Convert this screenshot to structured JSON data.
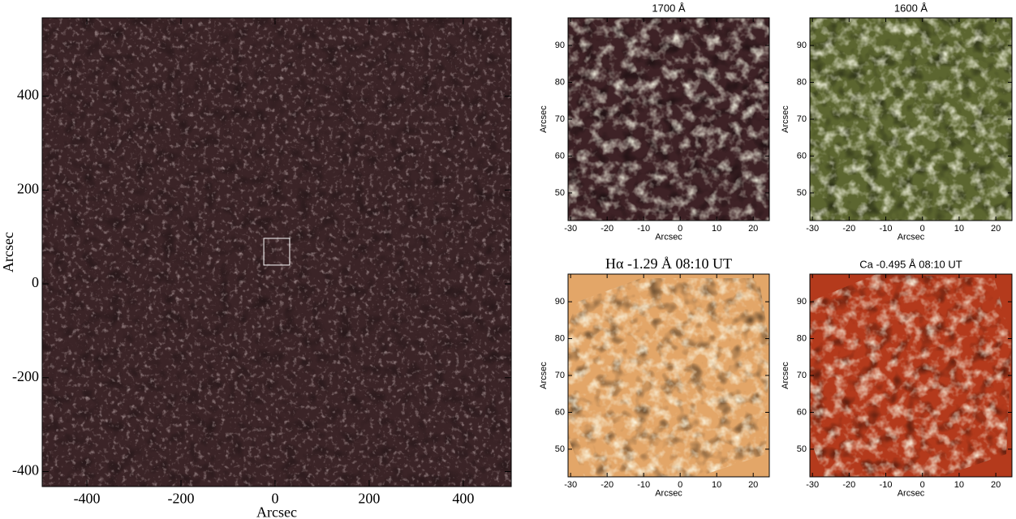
{
  "chart_data": [
    {
      "type": "image",
      "xlabel": "Arcsec",
      "ylabel": "Arcsec",
      "color": "#3b2427",
      "xlim": [
        -495,
        502
      ],
      "ylim": [
        -432,
        567
      ],
      "xticks": [
        -400,
        -200,
        0,
        200,
        400
      ],
      "yticks": [
        -400,
        -200,
        0,
        200,
        400
      ],
      "box": {
        "xlim": [
          -24,
          31
        ],
        "ylim": [
          40,
          97
        ]
      }
    },
    {
      "type": "image",
      "title": "1700 Å",
      "xlabel": "Arcsec",
      "ylabel": "Arcsec",
      "color": "#3e2226",
      "xlim": [
        -30.7,
        24.4
      ],
      "ylim": [
        42.5,
        97.5
      ],
      "xticks": [
        -30,
        -20,
        -10,
        0,
        10,
        20
      ],
      "yticks": [
        50,
        60,
        70,
        80,
        90
      ]
    },
    {
      "type": "image",
      "title": "1600 Å",
      "xlabel": "Arcsec",
      "ylabel": "Arcsec",
      "color": "#5c6630",
      "xlim": [
        -30.7,
        24.4
      ],
      "ylim": [
        42.5,
        97.5
      ],
      "xticks": [
        -30,
        -20,
        -10,
        0,
        10,
        20
      ],
      "yticks": [
        50,
        60,
        70,
        80,
        90
      ]
    },
    {
      "type": "image",
      "title": "Hα -1.29 Å 08:10 UT",
      "xlabel": "Arcsec",
      "ylabel": "Arcsec",
      "color": "#e3a668",
      "xlim": [
        -30.7,
        24.4
      ],
      "ylim": [
        42.5,
        97.5
      ],
      "xticks": [
        -30,
        -20,
        -10,
        0,
        10,
        20
      ],
      "yticks": [
        50,
        60,
        70,
        80,
        90
      ]
    },
    {
      "type": "image",
      "title": "Ca -0.495 Å 08:10 UT",
      "xlabel": "Arcsec",
      "ylabel": "Arcsec",
      "color": "#b43a1c",
      "xlim": [
        -30.7,
        24.4
      ],
      "ylim": [
        42.5,
        97.5
      ],
      "xticks": [
        -30,
        -20,
        -10,
        0,
        10,
        20
      ],
      "yticks": [
        50,
        60,
        70,
        80,
        90
      ]
    }
  ]
}
